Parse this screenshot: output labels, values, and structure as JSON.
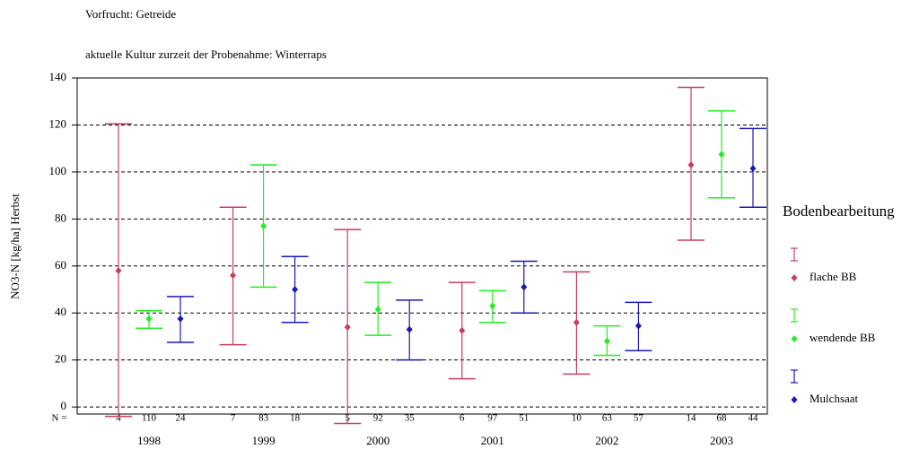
{
  "chart_data": {
    "type": "errorbar",
    "title": "Vorfrucht: Getreide",
    "subtitle": "aktuelle Kultur zurzeit der Probenahme: Winterraps",
    "y_label": "NO3-N [kg/ha] Herbst",
    "legend_title": "Bodenbearbeitung",
    "n_label": "N =",
    "categories": [
      "1998",
      "1999",
      "2000",
      "2001",
      "2002",
      "2003"
    ],
    "ylim": [
      -3,
      140
    ],
    "yticks": [
      0,
      20,
      40,
      60,
      80,
      100,
      120,
      140
    ],
    "grid": true,
    "series": [
      {
        "name": "flache BB",
        "color": "#cc3d5f",
        "values": [
          58,
          56,
          34,
          32.5,
          36,
          103
        ],
        "lower": [
          -4,
          26.5,
          -7,
          12,
          14,
          71
        ],
        "upper": [
          120.5,
          85,
          75.5,
          53,
          57.5,
          136
        ],
        "n": [
          4,
          7,
          5,
          6,
          10,
          14
        ]
      },
      {
        "name": "wendende BB",
        "color": "#22ee22",
        "values": [
          37.5,
          77,
          41.5,
          43,
          28,
          107.5
        ],
        "lower": [
          33.5,
          51,
          30.5,
          36,
          22,
          89
        ],
        "upper": [
          41,
          103,
          53,
          49.5,
          34.5,
          126
        ],
        "n": [
          110,
          83,
          92,
          97,
          63,
          68
        ]
      },
      {
        "name": "Mulchsaat",
        "color": "#1a1ab8",
        "values": [
          37.5,
          50,
          33,
          51,
          34.5,
          101.5
        ],
        "lower": [
          27.5,
          36,
          20,
          40,
          24,
          85
        ],
        "upper": [
          47,
          64,
          45.5,
          62,
          44.5,
          118.5
        ],
        "n": [
          24,
          18,
          35,
          51,
          57,
          44
        ]
      }
    ]
  }
}
